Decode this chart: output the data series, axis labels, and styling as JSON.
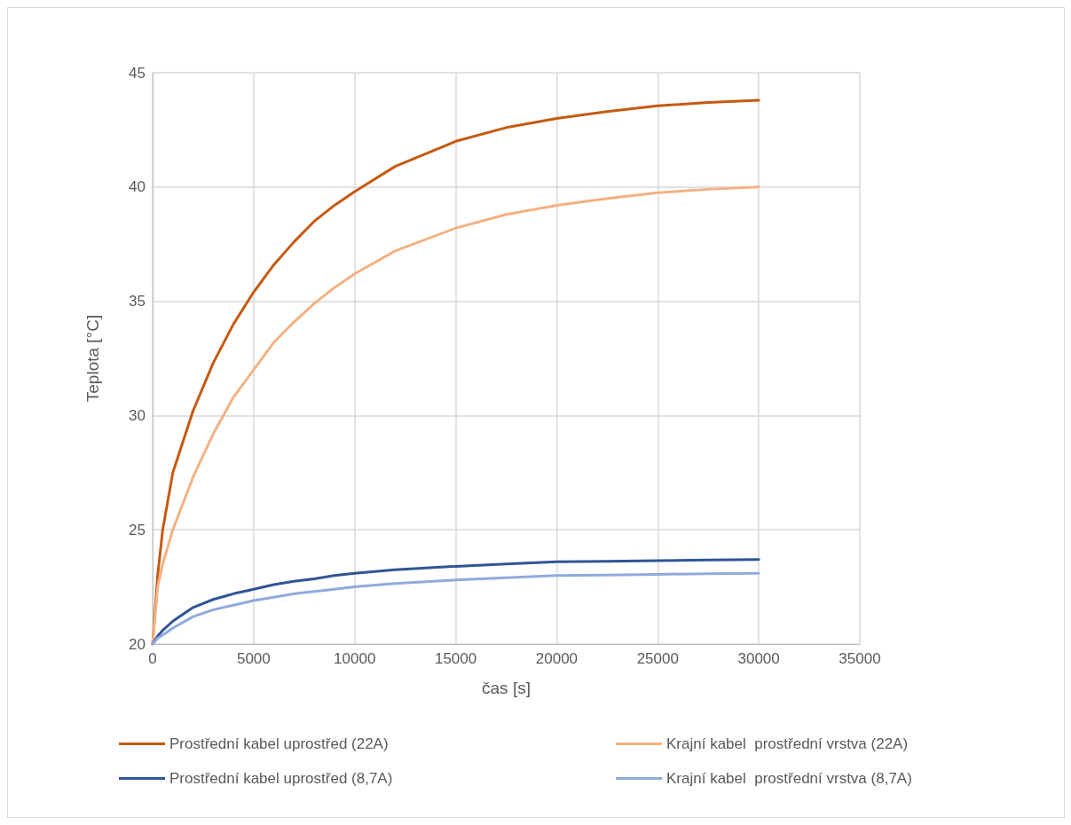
{
  "chart_data": {
    "type": "line",
    "xlabel": "čas [s]",
    "ylabel": "Teplota [°C]",
    "x": [
      0,
      250,
      500,
      1000,
      2000,
      3000,
      4000,
      5000,
      6000,
      7000,
      8000,
      9000,
      10000,
      12000,
      15000,
      17500,
      20000,
      22500,
      25000,
      27500,
      30000
    ],
    "series": [
      {
        "name": "Prostřední kabel uprostřed (22A)",
        "color": "#c55a11",
        "values": [
          20,
          23.0,
          25.0,
          27.5,
          30.2,
          32.3,
          34.0,
          35.4,
          36.6,
          37.6,
          38.5,
          39.2,
          39.8,
          40.9,
          42.0,
          42.6,
          43.0,
          43.3,
          43.55,
          43.7,
          43.8
        ]
      },
      {
        "name": "Krajní kabel  prostřední vrstva (22A)",
        "color": "#f4b183",
        "values": [
          20,
          22.5,
          23.5,
          25.0,
          27.3,
          29.2,
          30.8,
          32.0,
          33.2,
          34.1,
          34.9,
          35.6,
          36.2,
          37.2,
          38.2,
          38.8,
          39.2,
          39.5,
          39.75,
          39.9,
          40.0
        ]
      },
      {
        "name": "Prostřední kabel uprostřed (8,7A)",
        "color": "#2f5597",
        "values": [
          20,
          20.35,
          20.6,
          21.0,
          21.6,
          21.95,
          22.2,
          22.4,
          22.6,
          22.75,
          22.85,
          23.0,
          23.1,
          23.25,
          23.4,
          23.5,
          23.6,
          23.62,
          23.65,
          23.68,
          23.7
        ]
      },
      {
        "name": "Krajní kabel  prostřední vrstva (8,7A)",
        "color": "#8faadc",
        "values": [
          20,
          20.25,
          20.4,
          20.7,
          21.2,
          21.5,
          21.7,
          21.9,
          22.05,
          22.2,
          22.3,
          22.4,
          22.5,
          22.65,
          22.8,
          22.9,
          23.0,
          23.02,
          23.05,
          23.08,
          23.1
        ]
      }
    ],
    "xlim": [
      0,
      35000
    ],
    "xticks": [
      0,
      5000,
      10000,
      15000,
      20000,
      25000,
      30000,
      35000
    ],
    "ylim": [
      20,
      45
    ],
    "yticks": [
      20,
      25,
      30,
      35,
      40,
      45
    ],
    "grid": true,
    "legend": "bottom",
    "marker": "none",
    "line_style": "solid"
  }
}
